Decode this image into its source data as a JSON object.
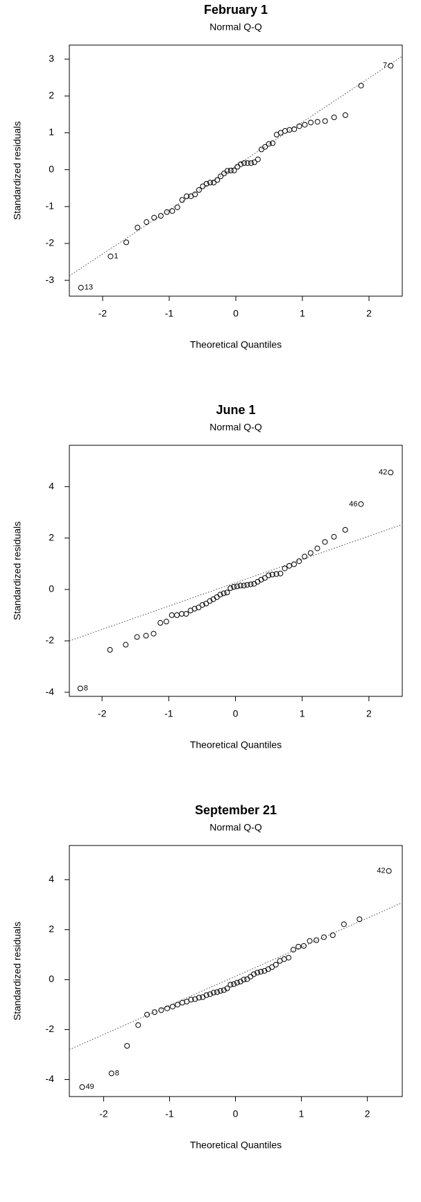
{
  "chart_data": [
    {
      "type": "scatter",
      "title": "February 1",
      "subtitle": "Normal Q-Q",
      "xlabel": "Theoretical Quantiles",
      "ylabel": "Standardized residuals",
      "x": [
        -2.326,
        -1.881,
        -1.645,
        -1.476,
        -1.341,
        -1.227,
        -1.126,
        -1.036,
        -0.954,
        -0.878,
        -0.806,
        -0.739,
        -0.674,
        -0.613,
        -0.553,
        -0.496,
        -0.44,
        -0.385,
        -0.332,
        -0.279,
        -0.228,
        -0.176,
        -0.126,
        -0.075,
        -0.025,
        0.025,
        0.075,
        0.126,
        0.176,
        0.228,
        0.279,
        0.332,
        0.385,
        0.44,
        0.496,
        0.553,
        0.613,
        0.674,
        0.739,
        0.806,
        0.878,
        0.954,
        1.036,
        1.126,
        1.227,
        1.341,
        1.476,
        1.645,
        1.881,
        2.326
      ],
      "y": [
        -3.2,
        -2.35,
        -1.97,
        -1.57,
        -1.42,
        -1.3,
        -1.25,
        -1.15,
        -1.12,
        -1.02,
        -0.82,
        -0.72,
        -0.72,
        -0.67,
        -0.55,
        -0.45,
        -0.38,
        -0.35,
        -0.35,
        -0.28,
        -0.18,
        -0.1,
        -0.03,
        -0.02,
        -0.02,
        0.08,
        0.15,
        0.18,
        0.18,
        0.18,
        0.2,
        0.28,
        0.55,
        0.62,
        0.7,
        0.72,
        0.95,
        1.0,
        1.05,
        1.08,
        1.1,
        1.18,
        1.22,
        1.28,
        1.3,
        1.32,
        1.42,
        1.48,
        2.28,
        2.82
      ],
      "labels": [
        "13",
        "1",
        null,
        null,
        null,
        null,
        null,
        null,
        null,
        null,
        null,
        null,
        null,
        null,
        null,
        null,
        null,
        null,
        null,
        null,
        null,
        null,
        null,
        null,
        null,
        null,
        null,
        null,
        null,
        null,
        null,
        null,
        null,
        null,
        null,
        null,
        null,
        null,
        null,
        null,
        null,
        null,
        null,
        null,
        null,
        null,
        null,
        null,
        null,
        "7"
      ],
      "reference_line": {
        "x": [
          -2.5,
          2.5
        ],
        "y": [
          -2.88,
          3.08
        ]
      },
      "xlim": [
        -2.5,
        2.5
      ],
      "ylim": [
        -3.43,
        3.38
      ],
      "xticks": [
        -2,
        -1,
        0,
        1,
        2
      ],
      "yticks": [
        -3,
        -2,
        -1,
        0,
        1,
        2,
        3
      ]
    },
    {
      "type": "scatter",
      "title": "June 1",
      "subtitle": "Normal Q-Q",
      "xlabel": "Theoretical Quantiles",
      "ylabel": "Standardized residuals",
      "x": [
        -2.326,
        -1.881,
        -1.645,
        -1.476,
        -1.341,
        -1.227,
        -1.126,
        -1.036,
        -0.954,
        -0.878,
        -0.806,
        -0.739,
        -0.674,
        -0.613,
        -0.553,
        -0.496,
        -0.44,
        -0.385,
        -0.332,
        -0.279,
        -0.228,
        -0.176,
        -0.126,
        -0.075,
        -0.025,
        0.025,
        0.075,
        0.126,
        0.176,
        0.228,
        0.279,
        0.332,
        0.385,
        0.44,
        0.496,
        0.553,
        0.613,
        0.674,
        0.739,
        0.806,
        0.878,
        0.954,
        1.036,
        1.126,
        1.227,
        1.341,
        1.476,
        1.645,
        1.881,
        2.326
      ],
      "y": [
        -3.85,
        -2.35,
        -2.15,
        -1.85,
        -1.8,
        -1.72,
        -1.3,
        -1.25,
        -1.0,
        -1.0,
        -0.95,
        -0.95,
        -0.82,
        -0.75,
        -0.7,
        -0.6,
        -0.55,
        -0.45,
        -0.38,
        -0.3,
        -0.2,
        -0.15,
        -0.12,
        0.05,
        0.1,
        0.12,
        0.15,
        0.15,
        0.18,
        0.2,
        0.22,
        0.3,
        0.38,
        0.45,
        0.55,
        0.58,
        0.6,
        0.62,
        0.82,
        0.92,
        0.98,
        1.1,
        1.28,
        1.42,
        1.6,
        1.85,
        2.05,
        2.32,
        3.32,
        4.55
      ],
      "labels": [
        "8",
        null,
        null,
        null,
        null,
        null,
        null,
        null,
        null,
        null,
        null,
        null,
        null,
        null,
        null,
        null,
        null,
        null,
        null,
        null,
        null,
        null,
        null,
        null,
        null,
        null,
        null,
        null,
        null,
        null,
        null,
        null,
        null,
        null,
        null,
        null,
        null,
        null,
        null,
        null,
        null,
        null,
        null,
        null,
        null,
        null,
        null,
        null,
        "46",
        "42"
      ],
      "reference_line": {
        "x": [
          -2.49,
          2.5
        ],
        "y": [
          -2.0,
          2.53
        ]
      },
      "xlim": [
        -2.49,
        2.5
      ],
      "ylim": [
        -4.16,
        5.61
      ],
      "xticks": [
        -2,
        -1,
        0,
        1,
        2
      ],
      "yticks": [
        -4,
        -2,
        0,
        2,
        4
      ]
    },
    {
      "type": "scatter",
      "title": "September 21",
      "subtitle": "Normal Q-Q",
      "xlabel": "Theoretical Quantiles",
      "ylabel": "Standardized residuals",
      "x": [
        -2.326,
        -1.881,
        -1.645,
        -1.476,
        -1.341,
        -1.227,
        -1.126,
        -1.036,
        -0.954,
        -0.878,
        -0.806,
        -0.739,
        -0.674,
        -0.613,
        -0.553,
        -0.496,
        -0.44,
        -0.385,
        -0.332,
        -0.279,
        -0.228,
        -0.176,
        -0.126,
        -0.075,
        -0.025,
        0.025,
        0.075,
        0.126,
        0.176,
        0.228,
        0.279,
        0.332,
        0.385,
        0.44,
        0.496,
        0.553,
        0.613,
        0.674,
        0.739,
        0.806,
        0.878,
        0.954,
        1.036,
        1.126,
        1.227,
        1.341,
        1.476,
        1.645,
        1.881,
        2.326
      ],
      "y": [
        -4.3,
        -3.75,
        -2.65,
        -1.82,
        -1.4,
        -1.3,
        -1.22,
        -1.15,
        -1.08,
        -1.0,
        -0.92,
        -0.88,
        -0.8,
        -0.78,
        -0.72,
        -0.7,
        -0.62,
        -0.58,
        -0.52,
        -0.5,
        -0.45,
        -0.42,
        -0.35,
        -0.2,
        -0.18,
        -0.12,
        -0.08,
        0.0,
        0.02,
        0.12,
        0.22,
        0.28,
        0.32,
        0.35,
        0.42,
        0.5,
        0.6,
        0.75,
        0.82,
        0.88,
        1.2,
        1.32,
        1.35,
        1.55,
        1.58,
        1.7,
        1.78,
        2.22,
        2.42,
        4.35
      ],
      "labels": [
        "49",
        "8",
        null,
        null,
        null,
        null,
        null,
        null,
        null,
        null,
        null,
        null,
        null,
        null,
        null,
        null,
        null,
        null,
        null,
        null,
        null,
        null,
        null,
        null,
        null,
        null,
        null,
        null,
        null,
        null,
        null,
        null,
        null,
        null,
        null,
        null,
        null,
        null,
        null,
        null,
        null,
        null,
        null,
        null,
        null,
        null,
        null,
        null,
        null,
        "42"
      ],
      "reference_line": {
        "x": [
          -2.52,
          2.53
        ],
        "y": [
          -2.8,
          3.08
        ]
      },
      "xlim": [
        -2.52,
        2.53
      ],
      "ylim": [
        -4.68,
        5.37
      ],
      "xticks": [
        -2,
        -1,
        0,
        1,
        2
      ],
      "yticks": [
        -4,
        -2,
        0,
        2,
        4
      ]
    }
  ]
}
